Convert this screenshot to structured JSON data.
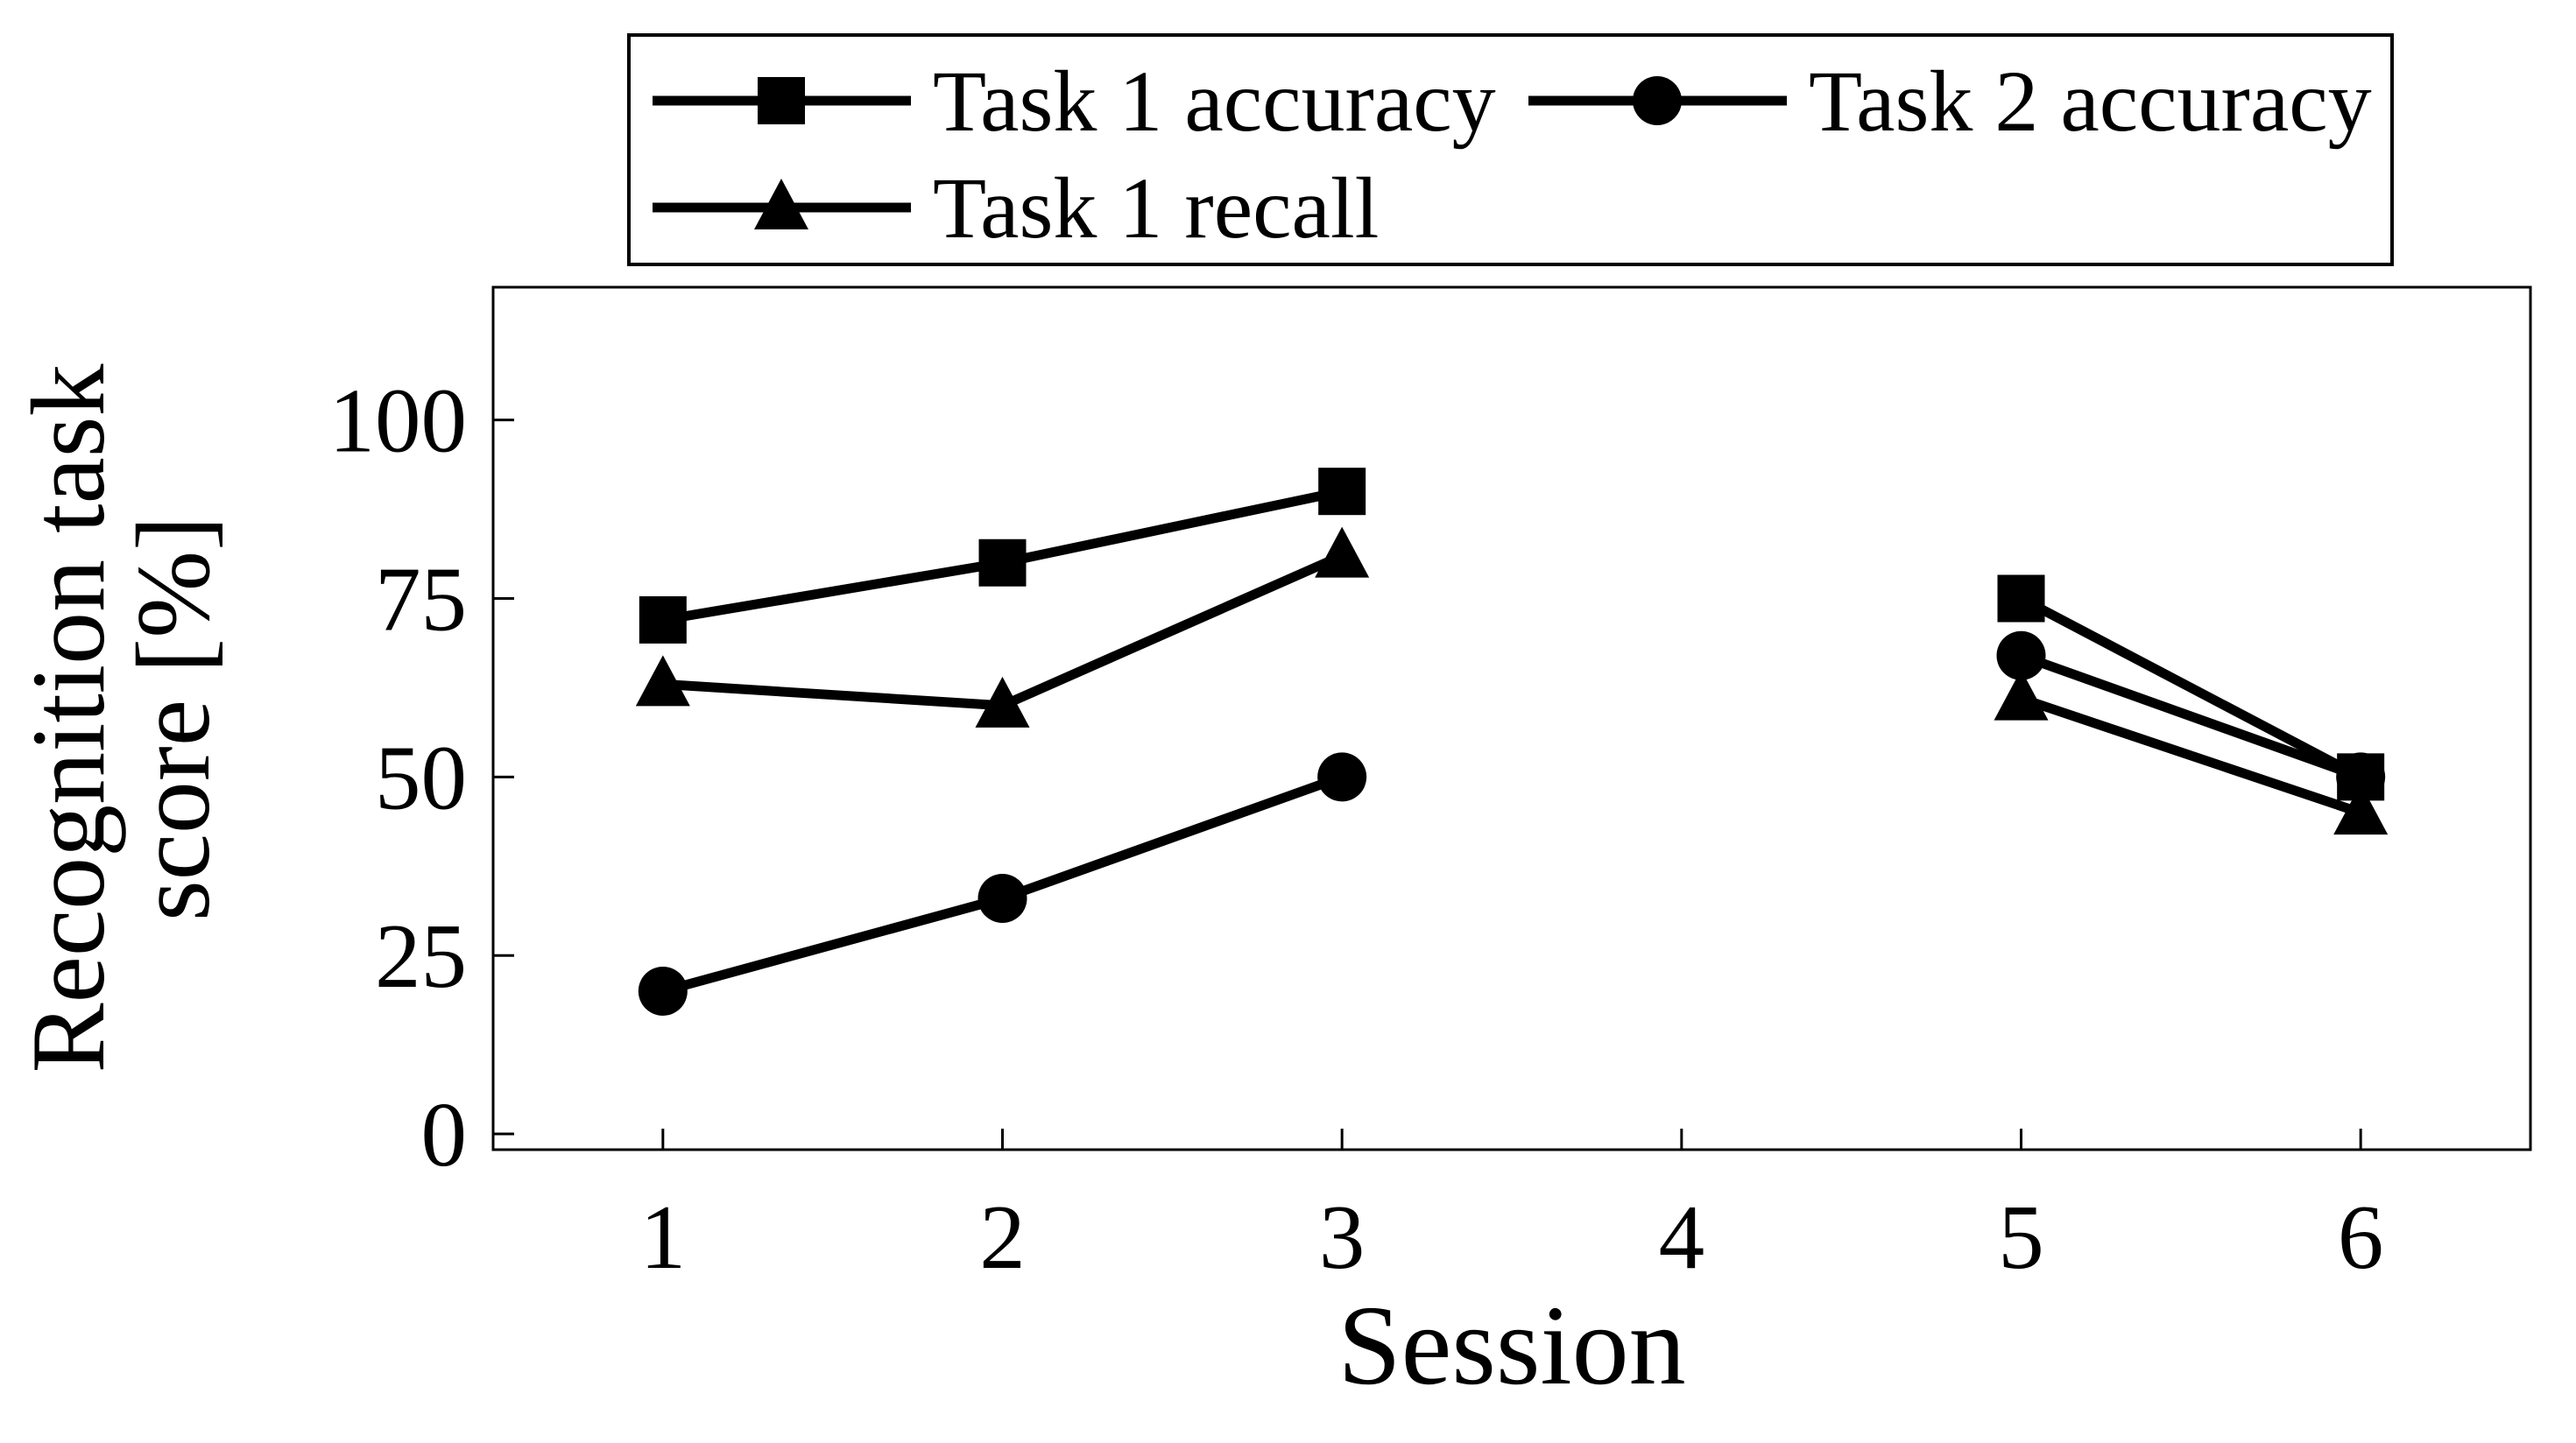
{
  "chart_data": {
    "type": "line",
    "title": "",
    "xlabel": "Session",
    "ylabel": "Recognition task score [%]",
    "ylabel_lines": [
      "Recognition task",
      "score [%]"
    ],
    "x": [
      1,
      2,
      3,
      4,
      5,
      6
    ],
    "x_ticks": [
      1,
      2,
      3,
      4,
      5,
      6
    ],
    "y_ticks": [
      0,
      25,
      50,
      75,
      100
    ],
    "xlim": [
      0.5,
      6.5
    ],
    "ylim": [
      0,
      100
    ],
    "grid": false,
    "legend_position": "top",
    "series_color": "#000000",
    "background_color": "#ffffff",
    "series": [
      {
        "name": "Task 1 accuracy",
        "marker": "square",
        "values": [
          72,
          80,
          90,
          null,
          75,
          50
        ]
      },
      {
        "name": "Task 2 accuracy",
        "marker": "circle",
        "values": [
          20,
          33,
          50,
          null,
          67,
          50
        ]
      },
      {
        "name": "Task 1 recall",
        "marker": "triangle",
        "values": [
          63,
          60,
          81,
          null,
          61,
          45
        ]
      }
    ]
  }
}
